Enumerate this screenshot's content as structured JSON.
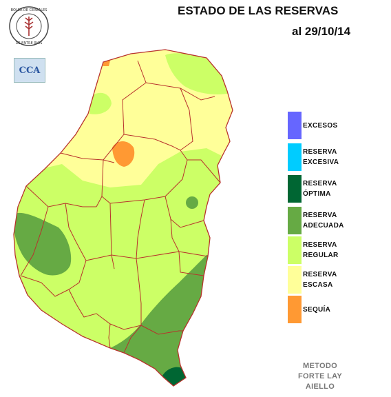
{
  "header": {
    "title": "ESTADO DE LAS RESERVAS",
    "date": "al 29/10/14"
  },
  "logos": {
    "bolsa_text": "BOLSA DE CEREALES DE ENTRE RIOS",
    "cca_text": "CCA"
  },
  "legend": [
    {
      "line1": "EXCESOS",
      "line2": "",
      "color": "#6666ff"
    },
    {
      "line1": "RESERVA",
      "line2": "EXCESIVA",
      "color": "#00ccff"
    },
    {
      "line1": "RESERVA",
      "line2": "ÓPTIMA",
      "color": "#006633"
    },
    {
      "line1": "RESERVA",
      "line2": "ADECUADA",
      "color": "#66aa44"
    },
    {
      "line1": "RESERVA",
      "line2": "REGULAR",
      "color": "#ccff66"
    },
    {
      "line1": "RESERVA",
      "line2": "ESCASA",
      "color": "#ffff99"
    },
    {
      "line1": "SEQUÍA",
      "line2": "",
      "color": "#ff9933"
    }
  ],
  "method": {
    "line1": "METODO",
    "line2": "FORTE LAY",
    "line3": "AIELLO"
  }
}
